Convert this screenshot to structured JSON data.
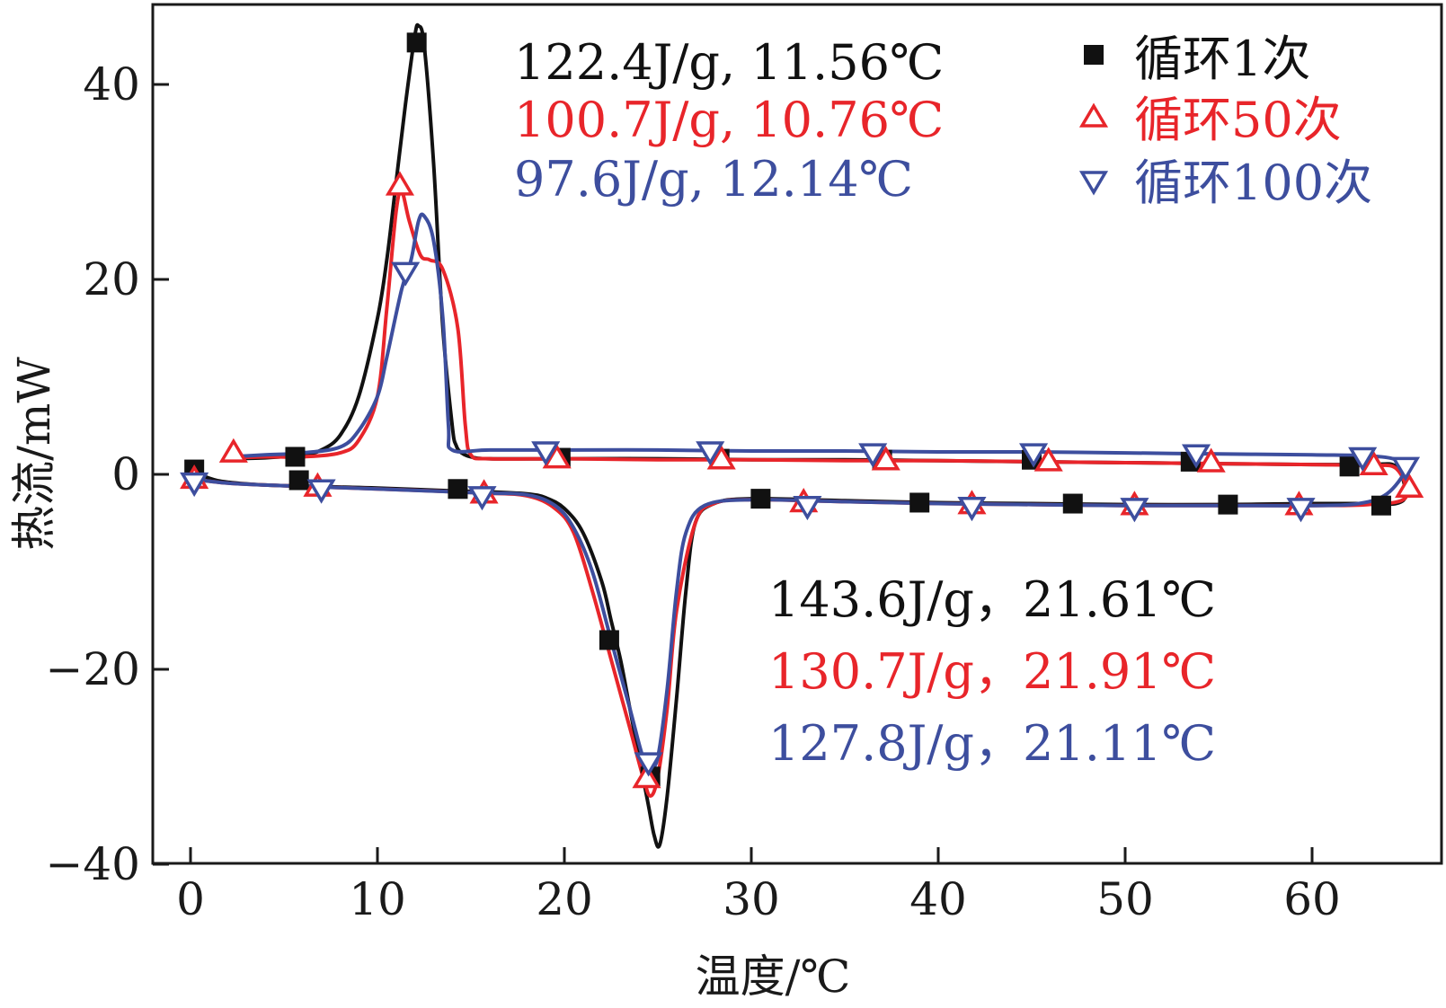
{
  "chart_data": {
    "type": "line",
    "xlabel": "温度/℃",
    "ylabel": "热流/mW",
    "xlim": [
      -2,
      65.5
    ],
    "ylim": [
      -40,
      48
    ],
    "xticks": [
      0,
      10,
      20,
      30,
      40,
      50,
      60
    ],
    "yticks": [
      -40,
      -20,
      0,
      20,
      40
    ],
    "xtick_labels": [
      "0",
      "10",
      "20",
      "30",
      "40",
      "50",
      "60"
    ],
    "ytick_labels": [
      "−40",
      "−20",
      "0",
      "20",
      "40"
    ],
    "grid": false,
    "legend_position": "top-right",
    "colors": {
      "cycle1": "#111111",
      "cycle50": "#e8252a",
      "cycle100": "#3d4e9e"
    },
    "series": [
      {
        "name": "循环1次",
        "marker": "square",
        "color": "#111111",
        "x": [
          0,
          1,
          2,
          4,
          6,
          8,
          10,
          14,
          16,
          18,
          19,
          20,
          21,
          22,
          22.5,
          23,
          23.5,
          24,
          24.5,
          24.8,
          25.1,
          25.5,
          26,
          26.5,
          27,
          28,
          30,
          35,
          40,
          45,
          50,
          55,
          60,
          63,
          64.5,
          65,
          64.5,
          63,
          60,
          55,
          50,
          45,
          40,
          35,
          30,
          25,
          20,
          16,
          15,
          14.5,
          14.2,
          14,
          13.5,
          13,
          12.5,
          12.2,
          12,
          11.5,
          11,
          10.5,
          10,
          9,
          8,
          7,
          6,
          4,
          2
        ],
        "y": [
          0.5,
          -0.4,
          -0.8,
          -1.1,
          -1.2,
          -1.3,
          -1.4,
          -1.7,
          -1.8,
          -2.0,
          -2.4,
          -3.5,
          -6,
          -11,
          -15,
          -19,
          -24,
          -29,
          -34,
          -37,
          -38,
          -33,
          -23,
          -12,
          -5,
          -3,
          -2.5,
          -2.7,
          -2.9,
          -3.0,
          -3.1,
          -3.1,
          -3.0,
          -3.0,
          -3.0,
          -2.0,
          0.8,
          1.0,
          1.0,
          1.1,
          1.2,
          1.3,
          1.4,
          1.5,
          1.5,
          1.6,
          1.6,
          1.6,
          1.8,
          2.2,
          3.0,
          5,
          15,
          32,
          44,
          46,
          45,
          38,
          30,
          22,
          16,
          8,
          4,
          2.5,
          2.0,
          1.7,
          1.6
        ],
        "markers_x": [
          0.2,
          5.8,
          14.3,
          22.4,
          24.6,
          30.5,
          39,
          47.2,
          55.5,
          63.7,
          62,
          53.5,
          45,
          37,
          28.3,
          19.8,
          5.6,
          12.1
        ],
        "markers_y": [
          0.5,
          -0.6,
          -1.5,
          -17,
          -31,
          -2.5,
          -2.9,
          -3.0,
          -3.1,
          -3.2,
          0.8,
          1.3,
          1.5,
          1.5,
          1.6,
          1.7,
          1.8,
          44.3
        ]
      },
      {
        "name": "循环50次",
        "marker": "triangle-up",
        "color": "#e8252a",
        "x": [
          0,
          1,
          2,
          4,
          7,
          10,
          15.5,
          18,
          19.5,
          20.5,
          21.5,
          22.5,
          23.5,
          24.2,
          24.6,
          25,
          25.5,
          26,
          27,
          28,
          30,
          35,
          40,
          45,
          50,
          55,
          60,
          63,
          65,
          64.5,
          63,
          60,
          55,
          50,
          45,
          40,
          35,
          30,
          25,
          20,
          16,
          15,
          14.7,
          14.3,
          13.5,
          12.8,
          12.3,
          11.7,
          11.3,
          11,
          10.5,
          10,
          9,
          8,
          6,
          4,
          2
        ],
        "y": [
          -0.5,
          -0.7,
          -0.9,
          -1.1,
          -1.3,
          -1.5,
          -1.9,
          -2.2,
          -3.5,
          -6,
          -12,
          -19,
          -26,
          -31,
          -33,
          -31,
          -24,
          -14,
          -5,
          -3,
          -2.6,
          -2.8,
          -3.0,
          -3.1,
          -3.2,
          -3.2,
          -3.2,
          -3.1,
          -2.4,
          0.6,
          0.9,
          1.0,
          1.1,
          1.2,
          1.3,
          1.4,
          1.4,
          1.5,
          1.5,
          1.6,
          1.6,
          2.0,
          5,
          15,
          21,
          22,
          22.5,
          26,
          29,
          27,
          17,
          8,
          3.5,
          2.2,
          1.8,
          1.8,
          1.7
        ],
        "markers_x": [
          0.2,
          6.8,
          15.7,
          24.4,
          32.8,
          41.8,
          50.5,
          59.3,
          65.2,
          63.3,
          54.6,
          45.9,
          37.2,
          28.4,
          19.6,
          11.2,
          2.3
        ],
        "markers_y": [
          -0.5,
          -1.3,
          -2.0,
          -31.2,
          -2.9,
          -3.1,
          -3.2,
          -3.2,
          -1.4,
          0.9,
          1.2,
          1.3,
          1.4,
          1.5,
          1.6,
          29.6,
          2.2
        ],
        "marker_labels": []
      },
      {
        "name": "循环100次",
        "marker": "triangle-down",
        "color": "#3d4e9e",
        "x": [
          0,
          1,
          2,
          4,
          7,
          10,
          15.5,
          18,
          19.5,
          20.5,
          21.5,
          22.5,
          23.5,
          24.2,
          24.6,
          25,
          25.5,
          26,
          26.5,
          27.5,
          30,
          35,
          40,
          45,
          50,
          55,
          60,
          62.5,
          64,
          65,
          64.5,
          63,
          60,
          55,
          50,
          45,
          40,
          35,
          30,
          25,
          20,
          16,
          14,
          13.8,
          13.5,
          13,
          12.5,
          12.2,
          11.8,
          11.3,
          10.5,
          10,
          9,
          8,
          6,
          4,
          2
        ],
        "y": [
          -0.5,
          -0.7,
          -0.9,
          -1.1,
          -1.3,
          -1.5,
          -1.9,
          -2.1,
          -3.2,
          -5.5,
          -10,
          -17,
          -24,
          -29,
          -30,
          -29,
          -22,
          -12,
          -6,
          -3.2,
          -2.6,
          -2.8,
          -3.0,
          -3.1,
          -3.2,
          -3.2,
          -3.2,
          -3.0,
          -2.0,
          0.5,
          1.5,
          1.9,
          2.0,
          2.1,
          2.2,
          2.3,
          2.3,
          2.4,
          2.4,
          2.5,
          2.5,
          2.5,
          2.5,
          5,
          16,
          24,
          26.5,
          26,
          22,
          19,
          12,
          8,
          4.5,
          2.8,
          2.2,
          2.0,
          1.8
        ],
        "markers_x": [
          0.2,
          7,
          15.6,
          24.5,
          33,
          41.8,
          50.5,
          59.4,
          65,
          62.7,
          53.8,
          45.1,
          36.5,
          27.8,
          19,
          11.5
        ],
        "markers_y": [
          -0.8,
          -1.5,
          -2.2,
          -29.5,
          -3.2,
          -3.3,
          -3.4,
          -3.4,
          0.8,
          1.8,
          2.1,
          2.2,
          2.2,
          2.4,
          2.4,
          20.8
        ]
      }
    ],
    "annotations": [
      {
        "text": "122.4J/g, 11.56℃",
        "color": "#111111"
      },
      {
        "text": "100.7J/g, 10.76℃",
        "color": "#e8252a"
      },
      {
        "text": "97.6J/g, 12.14℃",
        "color": "#3d4e9e"
      },
      {
        "text": "143.6J/g，21.61℃",
        "color": "#111111"
      },
      {
        "text": "130.7J/g，21.91℃",
        "color": "#e8252a"
      },
      {
        "text": "127.8J/g，21.11℃",
        "color": "#3d4e9e"
      }
    ]
  }
}
